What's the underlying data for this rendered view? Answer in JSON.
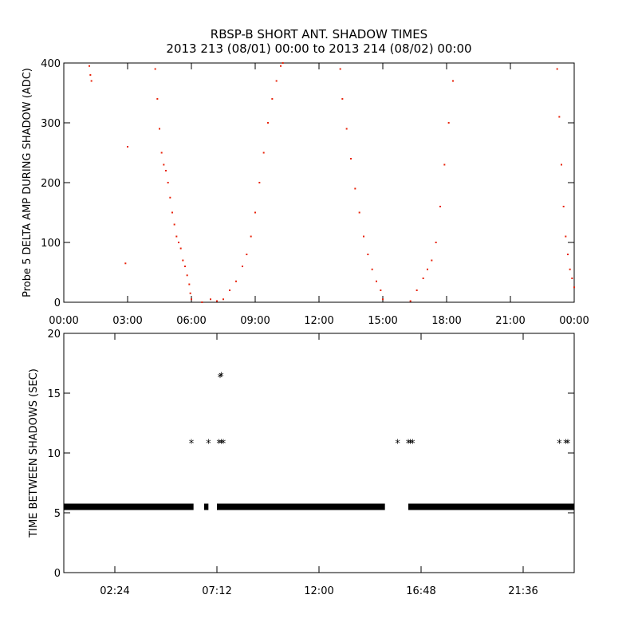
{
  "title_line1": "RBSP-B SHORT ANT. SHADOW TIMES",
  "title_line2": "2013 213 (08/01) 00:00 to 2013 214 (08/02) 00:00",
  "chart_data": [
    {
      "type": "scatter",
      "ylabel": "Probe 5 DELTA AMP DURING SHADOW (ADC)",
      "xlabel": "",
      "x_unit": "hours",
      "xlim": [
        0,
        24
      ],
      "ylim": [
        0,
        400
      ],
      "xticks": [
        0,
        3,
        6,
        9,
        12,
        15,
        18,
        21,
        24
      ],
      "xtick_labels": [
        "00:00",
        "03:00",
        "06:00",
        "09:00",
        "12:00",
        "15:00",
        "18:00",
        "21:00",
        "00:00"
      ],
      "yticks": [
        0,
        100,
        200,
        300,
        400
      ],
      "ytick_labels": [
        "0",
        "100",
        "200",
        "300",
        "400"
      ],
      "color": "#e8230a",
      "series": [
        {
          "x": [
            1.2,
            1.25,
            1.3,
            4.3,
            4.4,
            4.5,
            4.6,
            4.7,
            4.8,
            4.9,
            5.0,
            5.1,
            5.2,
            5.3,
            5.4,
            5.5,
            5.6,
            5.7,
            5.8,
            5.9,
            5.95,
            6.0,
            6.5,
            6.9,
            7.2,
            7.5,
            7.8,
            8.1,
            8.4,
            8.6,
            8.8,
            9.0,
            9.2,
            9.4,
            9.6,
            9.8,
            10.0,
            10.2,
            3.0,
            2.9,
            10.3,
            13.0,
            13.1,
            13.3,
            13.5,
            13.7,
            13.9,
            14.1,
            14.3,
            14.5,
            14.7,
            14.9,
            15.0,
            16.3,
            16.6,
            16.9,
            17.1,
            17.3,
            17.5,
            17.7,
            17.9,
            18.1,
            18.3,
            23.2,
            23.3,
            23.4,
            23.5,
            23.6,
            23.7,
            23.8,
            23.9,
            24.0
          ],
          "y": [
            395,
            380,
            370,
            390,
            340,
            290,
            250,
            230,
            220,
            200,
            175,
            150,
            130,
            110,
            100,
            90,
            70,
            60,
            45,
            30,
            15,
            5,
            0,
            5,
            2,
            5,
            20,
            35,
            60,
            80,
            110,
            150,
            200,
            250,
            300,
            340,
            370,
            395,
            260,
            65,
            400,
            390,
            340,
            290,
            240,
            190,
            150,
            110,
            80,
            55,
            35,
            20,
            5,
            2,
            20,
            40,
            55,
            70,
            100,
            160,
            230,
            300,
            370,
            390,
            310,
            230,
            160,
            110,
            80,
            55,
            40,
            25
          ]
        }
      ]
    },
    {
      "type": "scatter",
      "ylabel": "TIME BETWEEN SHADOWS (SEC)",
      "xlabel": "",
      "x_unit": "hours",
      "xlim": [
        0,
        24
      ],
      "ylim": [
        0,
        20
      ],
      "xticks": [
        2.4,
        7.2,
        12.0,
        16.8,
        21.6
      ],
      "xtick_labels": [
        "02:24",
        "07:12",
        "12:00",
        "16:48",
        "21:36"
      ],
      "yticks": [
        0,
        5,
        10,
        15,
        20
      ],
      "ytick_labels": [
        "0",
        "5",
        "10",
        "15",
        "20"
      ],
      "marker": "asterisk",
      "color": "#000000",
      "baseline": {
        "y": 5.5,
        "segments": [
          [
            0.0,
            6.1
          ],
          [
            6.6,
            6.8
          ],
          [
            7.2,
            15.1
          ],
          [
            16.2,
            24.0
          ]
        ]
      },
      "series": [
        {
          "x": [
            6.0,
            6.8,
            7.3,
            7.4,
            7.5,
            7.35,
            7.4,
            15.7,
            16.2,
            16.3,
            16.4,
            23.3,
            23.6,
            23.7
          ],
          "y": [
            10.9,
            10.9,
            10.9,
            10.9,
            10.9,
            16.4,
            16.5,
            10.9,
            10.9,
            10.9,
            10.9,
            10.9,
            10.9,
            10.9
          ]
        }
      ]
    }
  ]
}
